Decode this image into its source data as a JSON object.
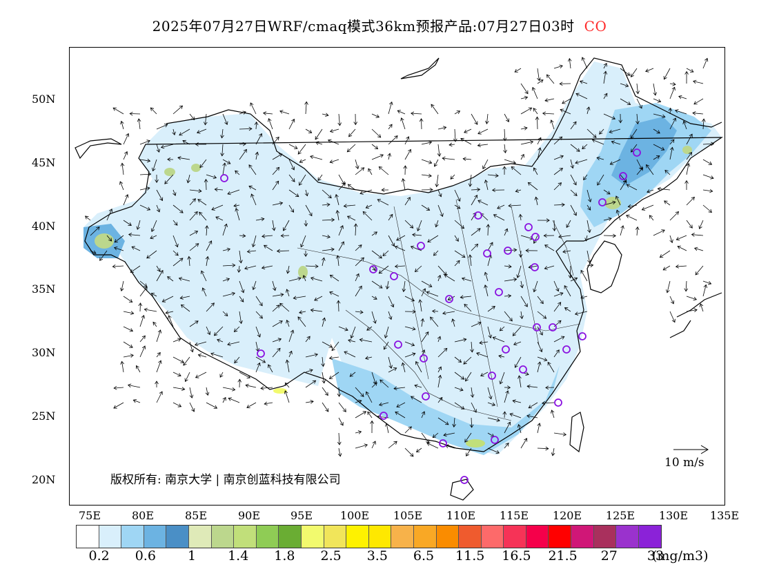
{
  "title": "2025年07月27日WRF/cmaq模式36km预报产品:07月27日03时",
  "pollutant": "CO",
  "y_ticks": [
    "50N",
    "45N",
    "40N",
    "35N",
    "30N",
    "25N",
    "20N"
  ],
  "x_ticks": [
    "75E",
    "80E",
    "85E",
    "90E",
    "95E",
    "100E",
    "105E",
    "110E",
    "115E",
    "120E",
    "125E",
    "130E",
    "135E"
  ],
  "copyright": "版权所有: 南京大学 | 南京创蓝科技有限公司",
  "wind_reference": "10 m/s",
  "colorbar": {
    "colors": [
      "#ffffff",
      "#d9effb",
      "#9fd6f4",
      "#6cb3e2",
      "#4a8fc6",
      "#dfeab8",
      "#bcd78d",
      "#c1df7a",
      "#8fcc55",
      "#6aad33",
      "#f2fa6e",
      "#f1e55a",
      "#fef200",
      "#fee800",
      "#f7b24a",
      "#f9a825",
      "#fa8c00",
      "#ef5b2e",
      "#fd6a6a",
      "#f63357",
      "#f5004a",
      "#ff0000",
      "#d01777",
      "#a9305d",
      "#9a32cd",
      "#8b22d8"
    ],
    "labels": [
      "0.2",
      "0.6",
      "1",
      "1.4",
      "1.8",
      "2.5",
      "3.5",
      "6.5",
      "11.5",
      "16.5",
      "21.5",
      "27",
      "33"
    ],
    "unit": "(mg/m3)"
  }
}
